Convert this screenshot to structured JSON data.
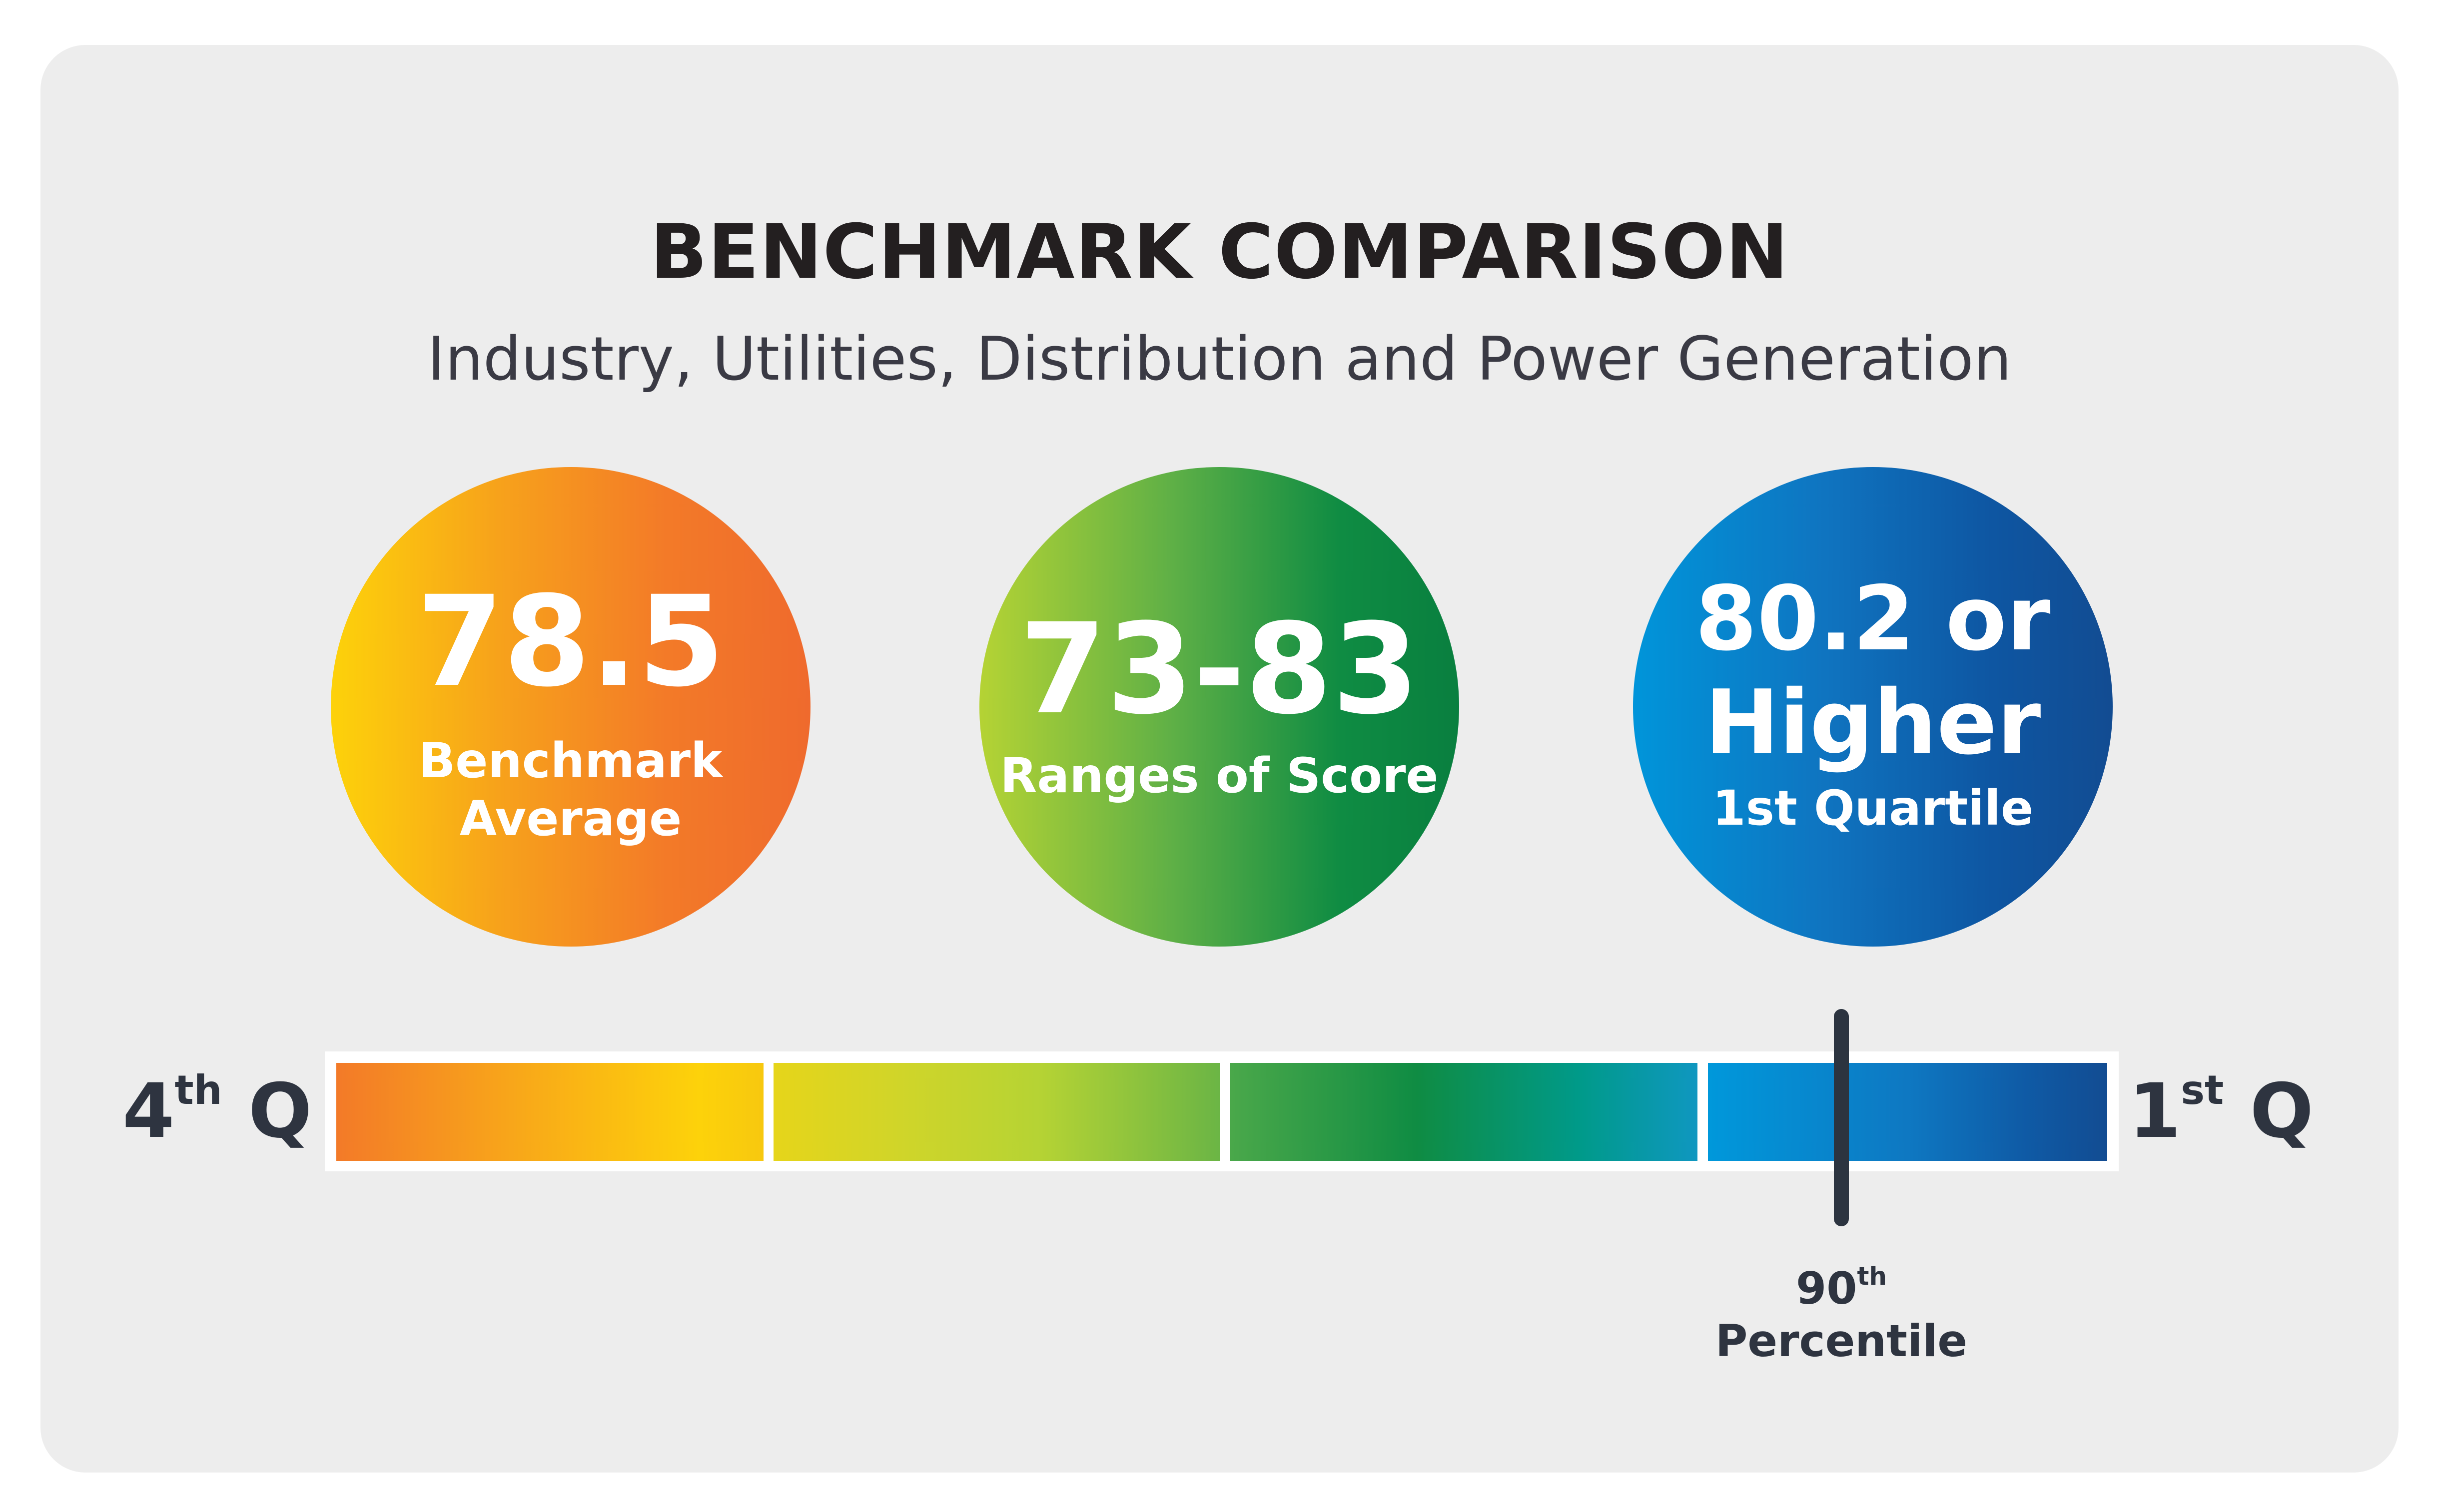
{
  "title": "BENCHMARK COMPARISON",
  "subtitle": "Industry, Utilities, Distribution and Power Generation",
  "circles": [
    {
      "value": "78.5",
      "label_line1": "Benchmark",
      "label_line2": "Average",
      "color_start": "#fdd20a",
      "color_end": "#ef6a2d"
    },
    {
      "value": "73-83",
      "label": "Ranges of Score",
      "color_start": "#b5d334",
      "color_end": "#097f3f"
    },
    {
      "value_line1": "80.2 or",
      "value_line2": "Higher",
      "label": "1st Quartile",
      "color_start": "#0095da",
      "color_end": "#124c92"
    }
  ],
  "scale": {
    "left_label": {
      "base": "4",
      "sup": "th",
      "suffix": " Q"
    },
    "right_label": {
      "base": "1",
      "sup": "st",
      "suffix": " Q"
    },
    "segments": 4,
    "marker": {
      "number": "90",
      "number_sup": "th",
      "label": "Percentile",
      "color": "#2c3440"
    }
  }
}
